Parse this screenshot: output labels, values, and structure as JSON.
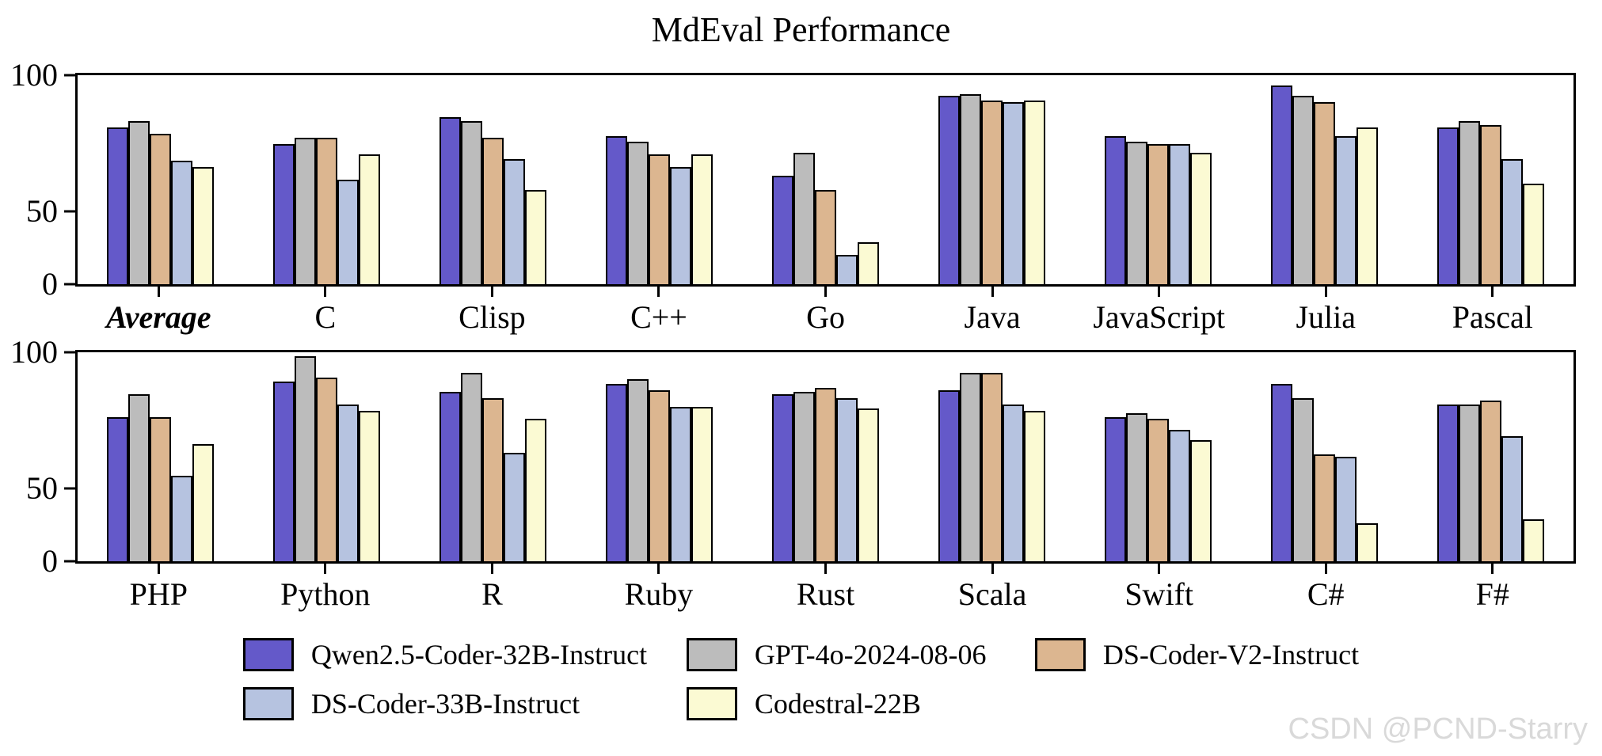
{
  "title": "MdEval Performance",
  "watermark": "CSDN @PCND-Starry",
  "axis": {
    "ytick_labels": [
      "100",
      "50",
      "0"
    ]
  },
  "chart_data": {
    "type": "bar",
    "title": "MdEval Performance",
    "ylim": [
      0,
      100
    ],
    "yticks": [
      0,
      50,
      100
    ],
    "grid": false,
    "legend_position": "bottom",
    "bar_edge_color": "#000000",
    "series_names": [
      "Qwen2.5-Coder-32B-Instruct",
      "GPT-4o-2024-08-06",
      "DS-Coder-V2-Instruct",
      "DS-Coder-33B-Instruct",
      "Codestral-22B"
    ],
    "series_colors": [
      "#6459C9",
      "#BCBCBC",
      "#DCB690",
      "#B6C3E0",
      "#FBFAD3"
    ],
    "rows": [
      {
        "categories": [
          "Average",
          "C",
          "Clisp",
          "C++",
          "Go",
          "Java",
          "JavaScript",
          "Julia",
          "Pascal"
        ],
        "emphasis_categories": [
          "Average"
        ],
        "series": [
          {
            "name": "Qwen2.5-Coder-32B-Instruct",
            "values": [
              75,
              67,
              80,
              71,
              52,
              90,
              71,
              95,
              75
            ]
          },
          {
            "name": "GPT-4o-2024-08-06",
            "values": [
              78,
              70,
              78,
              68,
              63,
              91,
              68,
              90,
              78
            ]
          },
          {
            "name": "DS-Coder-V2-Instruct",
            "values": [
              72,
              70,
              70,
              62,
              45,
              88,
              67,
              87,
              76
            ]
          },
          {
            "name": "DS-Coder-33B-Instruct",
            "values": [
              59,
              50,
              60,
              56,
              14,
              87,
              67,
              71,
              60
            ]
          },
          {
            "name": "Codestral-22B",
            "values": [
              56,
              62,
              45,
              62,
              20,
              88,
              63,
              75,
              48
            ]
          }
        ]
      },
      {
        "categories": [
          "PHP",
          "Python",
          "R",
          "Ruby",
          "Rust",
          "Scala",
          "Swift",
          "C#",
          "F#"
        ],
        "emphasis_categories": [],
        "series": [
          {
            "name": "Qwen2.5-Coder-32B-Instruct",
            "values": [
              69,
              86,
              81,
              85,
              80,
              82,
              69,
              85,
              75
            ]
          },
          {
            "name": "GPT-4o-2024-08-06",
            "values": [
              80,
              98,
              90,
              87,
              81,
              90,
              71,
              78,
              75
            ]
          },
          {
            "name": "DS-Coder-V2-Instruct",
            "values": [
              69,
              88,
              78,
              82,
              83,
              90,
              68,
              51,
              77
            ]
          },
          {
            "name": "DS-Coder-33B-Instruct",
            "values": [
              41,
              75,
              52,
              74,
              78,
              75,
              63,
              50,
              60
            ]
          },
          {
            "name": "Codestral-22B",
            "values": [
              56,
              72,
              68,
              74,
              73,
              72,
              58,
              18,
              20
            ]
          }
        ]
      }
    ]
  }
}
